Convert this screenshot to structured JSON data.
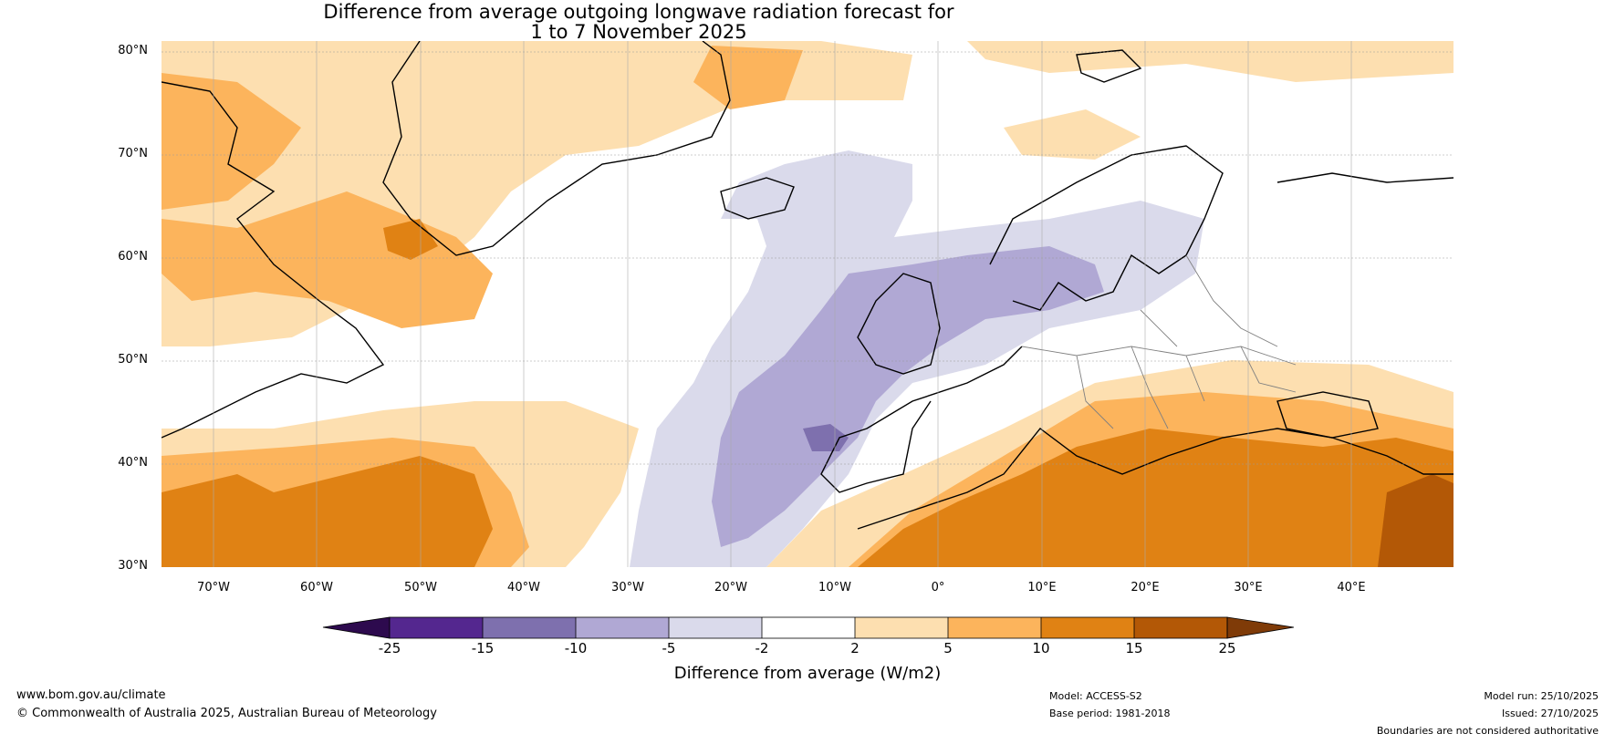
{
  "title_line1": "Difference from average outgoing longwave radiation forecast for",
  "title_line2": "1 to 7 November 2025",
  "lat_labels": [
    "80°N",
    "70°N",
    "60°N",
    "50°N",
    "40°N",
    "30°N"
  ],
  "lon_labels": [
    "70°W",
    "60°W",
    "50°W",
    "40°W",
    "30°W",
    "20°W",
    "10°W",
    "0°",
    "10°E",
    "20°E",
    "30°E",
    "40°E"
  ],
  "colorbar": {
    "label": "Difference from average (W/m2)",
    "ticks": [
      "-25",
      "-15",
      "-10",
      "-5",
      "-2",
      "2",
      "5",
      "10",
      "15",
      "25"
    ],
    "colors": [
      "#2d0a4e",
      "#54278f",
      "#7e70ae",
      "#b0a8d4",
      "#dadaeb",
      "#ffffff",
      "#fddfb0",
      "#fcb45c",
      "#e08214",
      "#b35806",
      "#7f3b08"
    ]
  },
  "map_colors": {
    "land_outline": "#000000",
    "border": "#808080",
    "grid": "#999999"
  },
  "footer": {
    "website": "www.bom.gov.au/climate",
    "copyright": "© Commonwealth of Australia 2025, Australian Bureau of Meteorology",
    "model": "Model: ACCESS-S2",
    "base_period": "Base period: 1981-2018",
    "model_run": "Model run: 25/10/2025",
    "issued": "Issued: 27/10/2025",
    "disclaimer": "Boundaries are not considered authoritative"
  }
}
